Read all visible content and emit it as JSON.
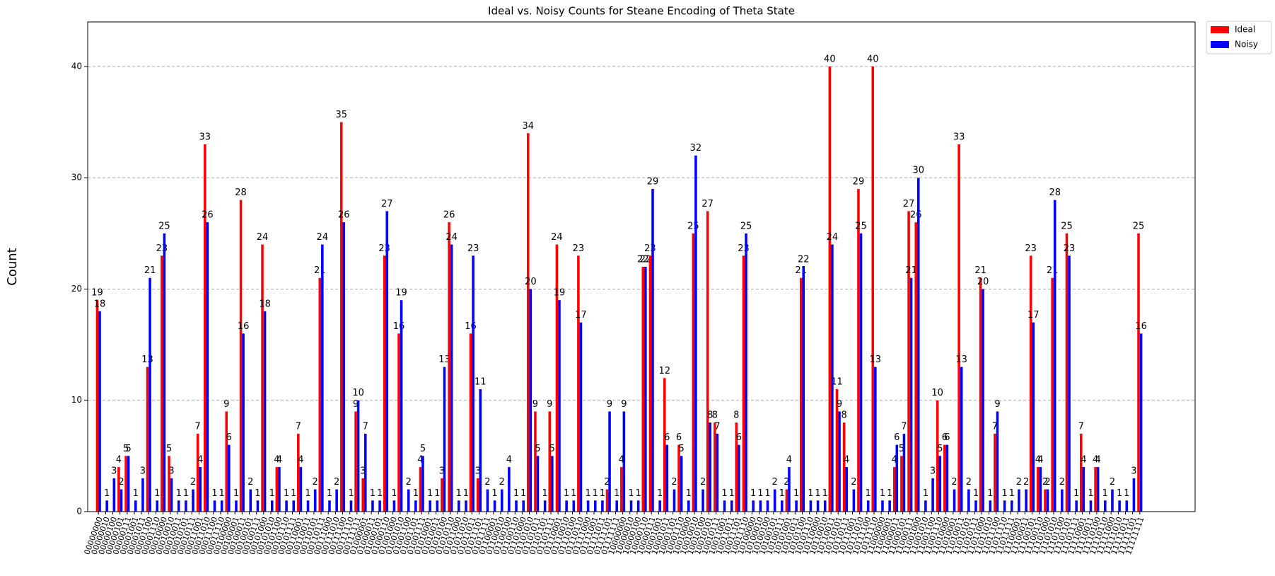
{
  "chart_data": {
    "type": "grouped_bar",
    "title": "Ideal vs. Noisy Counts for Steane Encoding of Theta State",
    "y_label": "Count",
    "categories": [
      "00000000",
      "00000010",
      "00000100",
      "00000101",
      "00000111",
      "00001001",
      "00001011",
      "00001100",
      "00001110",
      "00010000",
      "00010010",
      "00010011",
      "00010101",
      "00010111",
      "00011001",
      "00011010",
      "00011100",
      "00011110",
      "00100000",
      "00100001",
      "00100011",
      "00100101",
      "00100111",
      "00101000",
      "00101010",
      "00101100",
      "00101110",
      "00101111",
      "00110001",
      "00110011",
      "00110101",
      "00110111",
      "00111000",
      "00111010",
      "00111100",
      "00111110",
      "00111111",
      "01000001",
      "01000011",
      "01000101",
      "01000110",
      "01001000",
      "01001010",
      "01001100",
      "01001101",
      "01001111",
      "01010001",
      "01010011",
      "01010100",
      "01010110",
      "01011000",
      "01011010",
      "01011011",
      "01011101",
      "01011111",
      "01100001",
      "01100010",
      "01100100",
      "01100110",
      "01101000",
      "01101010",
      "01101011",
      "01101101",
      "01101111",
      "01110001",
      "01110010",
      "01110100",
      "01110110",
      "01111000",
      "01111001",
      "01111011",
      "01111101",
      "01111111",
      "10000000",
      "10000010",
      "10000100",
      "10000110",
      "10000111",
      "10001001",
      "10001011",
      "10001101",
      "10001110",
      "10010000",
      "10010010",
      "10010100",
      "10010101",
      "10010111",
      "10011001",
      "10011011",
      "10011101",
      "10011110",
      "10100000",
      "10100010",
      "10100100",
      "10100101",
      "10100111",
      "10101001",
      "10101011",
      "10101100",
      "10101110",
      "10110000",
      "10110010",
      "10110011",
      "10110101",
      "10110111",
      "10111001",
      "10111010",
      "10111100",
      "10111110",
      "11000000",
      "11000001",
      "11000011",
      "11000101",
      "11000111",
      "11001000",
      "11001010",
      "11001100",
      "11001110",
      "11010000",
      "11010001",
      "11010011",
      "11010101",
      "11010111",
      "11011000",
      "11011010",
      "11011100",
      "11011110",
      "11011111",
      "11100001",
      "11100011",
      "11100101",
      "11100110",
      "11101000",
      "11101010",
      "11101100",
      "11101101",
      "11101111",
      "11110001",
      "11110011",
      "11110100",
      "11110110",
      "11111000",
      "11111010",
      "11111011",
      "11111101",
      "11111111"
    ],
    "series": [
      {
        "name": "Ideal",
        "color": "#ff0000",
        "values": [
          19,
          0,
          0,
          4,
          5,
          0,
          0,
          13,
          0,
          23,
          5,
          0,
          0,
          0,
          7,
          33,
          0,
          0,
          9,
          0,
          28,
          0,
          0,
          24,
          0,
          4,
          0,
          0,
          7,
          0,
          0,
          21,
          0,
          0,
          35,
          0,
          9,
          3,
          0,
          0,
          23,
          0,
          16,
          0,
          0,
          4,
          0,
          0,
          3,
          26,
          0,
          0,
          16,
          3,
          0,
          0,
          0,
          0,
          0,
          0,
          34,
          9,
          0,
          9,
          24,
          0,
          0,
          23,
          0,
          0,
          0,
          2,
          0,
          4,
          0,
          0,
          22,
          23,
          0,
          12,
          0,
          6,
          0,
          25,
          0,
          27,
          8,
          0,
          0,
          8,
          23,
          0,
          0,
          0,
          0,
          0,
          2,
          0,
          21,
          0,
          0,
          0,
          40,
          11,
          8,
          0,
          29,
          0,
          40,
          0,
          0,
          4,
          5,
          27,
          26,
          0,
          0,
          10,
          6,
          0,
          33,
          0,
          0,
          21,
          0,
          7,
          0,
          0,
          0,
          0,
          23,
          4,
          2,
          21,
          0,
          25,
          0,
          7,
          0,
          4,
          0,
          0,
          0,
          0,
          0,
          25
        ]
      },
      {
        "name": "Noisy",
        "color": "#0000ff",
        "values": [
          18,
          1,
          3,
          2,
          5,
          1,
          3,
          21,
          1,
          25,
          3,
          1,
          1,
          2,
          4,
          26,
          1,
          1,
          6,
          1,
          16,
          2,
          1,
          18,
          1,
          4,
          1,
          1,
          4,
          1,
          2,
          24,
          1,
          2,
          26,
          1,
          10,
          7,
          1,
          1,
          27,
          1,
          19,
          2,
          1,
          5,
          1,
          1,
          13,
          24,
          1,
          1,
          23,
          11,
          2,
          1,
          2,
          4,
          1,
          1,
          20,
          5,
          1,
          5,
          19,
          1,
          1,
          17,
          1,
          1,
          1,
          9,
          1,
          9,
          1,
          1,
          22,
          29,
          1,
          6,
          2,
          5,
          1,
          32,
          2,
          8,
          7,
          1,
          1,
          6,
          25,
          1,
          1,
          1,
          2,
          1,
          4,
          1,
          22,
          1,
          1,
          1,
          24,
          9,
          4,
          2,
          25,
          1,
          13,
          1,
          1,
          6,
          7,
          21,
          30,
          1,
          3,
          5,
          6,
          2,
          13,
          2,
          1,
          20,
          1,
          9,
          1,
          1,
          2,
          2,
          17,
          4,
          2,
          28,
          2,
          23,
          1,
          4,
          1,
          4,
          1,
          2,
          1,
          1,
          3,
          16
        ]
      }
    ],
    "ylim": [
      0,
      44
    ],
    "yticks": [
      0,
      10,
      20,
      30,
      40
    ],
    "grid": true,
    "legend": "outside upper right"
  }
}
